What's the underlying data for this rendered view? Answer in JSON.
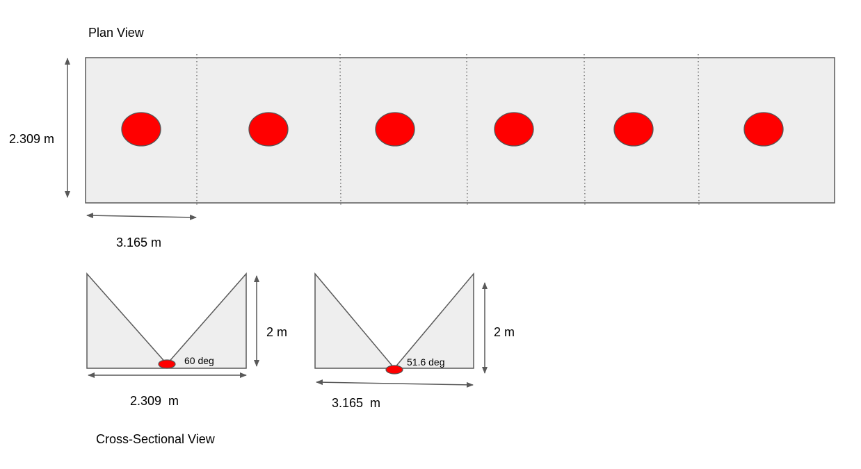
{
  "plan_view": {
    "title": "Plan View",
    "width_label": "2.309 m",
    "spacing_label": "3.165 m",
    "fixture_count": 6,
    "fill_color": "#eeeeee",
    "fixture_color": "#ff0000"
  },
  "cross_section": {
    "title": "Cross-Sectional View",
    "left": {
      "height_label": "2 m",
      "width_label": "2.309  m",
      "angle_label": "60 deg"
    },
    "right": {
      "height_label": "2 m",
      "width_label": "3.165  m",
      "angle_label": "51.6 deg"
    }
  }
}
